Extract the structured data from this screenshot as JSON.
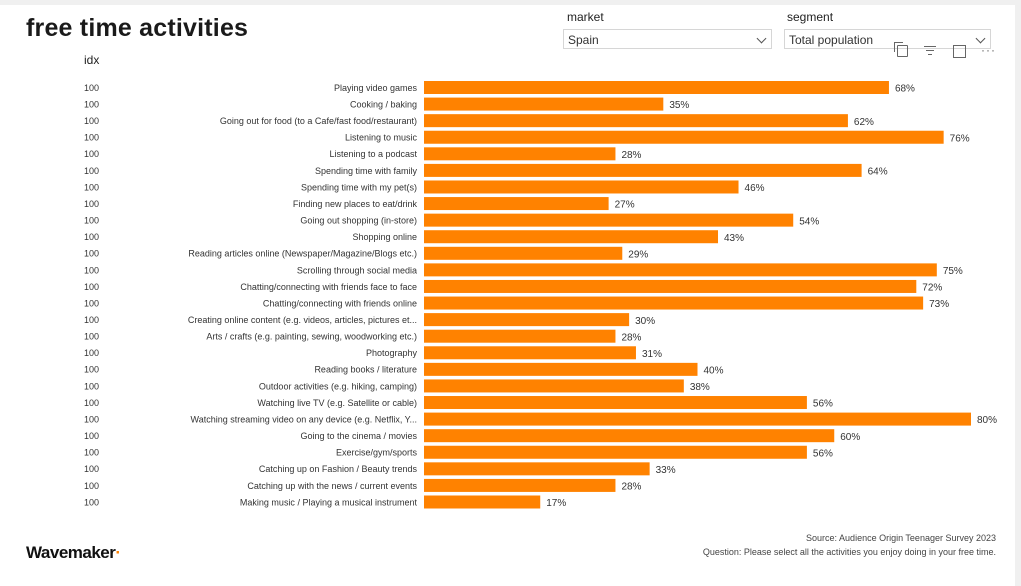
{
  "page": {
    "title": "free time activities",
    "idx_header": "idx",
    "source": "Source: Audience Origin Teenager Survey 2023",
    "question": "Question: Please select all the activities you enjoy doing in your free time.",
    "logo_text": "Wavemaker",
    "logo_dot": "·"
  },
  "filters": {
    "market": {
      "label": "market",
      "value": "Spain"
    },
    "segment": {
      "label": "segment",
      "value": "Total population"
    }
  },
  "toolbar": {
    "icons": [
      "copy-icon",
      "filter-icon",
      "focus-mode-icon",
      "more-options-icon"
    ],
    "more_glyph": "···"
  },
  "colors": {
    "bar": "#ff8200",
    "text": "#333333"
  },
  "chart_data": {
    "type": "bar",
    "orientation": "horizontal",
    "title": "free time activities",
    "xlim": [
      0,
      80
    ],
    "value_suffix": "%",
    "grid": false,
    "categories": [
      "Playing video games",
      "Cooking / baking",
      "Going out for food (to a Cafe/fast food/restaurant)",
      "Listening to music",
      "Listening to a podcast",
      "Spending time with family",
      "Spending time with my pet(s)",
      "Finding new places to eat/drink",
      "Going out shopping (in-store)",
      "Shopping online",
      "Reading articles online (Newspaper/Magazine/Blogs etc.)",
      "Scrolling through social media",
      "Chatting/connecting with friends face to face",
      "Chatting/connecting with friends online",
      "Creating online content (e.g. videos, articles, pictures et...",
      "Arts / crafts (e.g. painting, sewing, woodworking etc.)",
      "Photography",
      "Reading books / literature",
      "Outdoor activities (e.g. hiking, camping)",
      "Watching live TV (e.g. Satellite or cable)",
      "Watching streaming video on any device (e.g. Netflix, Y...",
      "Going to the cinema / movies",
      "Exercise/gym/sports",
      "Catching up on Fashion / Beauty trends",
      "Catching up with the news / current events",
      "Making music / Playing a musical instrument"
    ],
    "values": [
      68,
      35,
      62,
      76,
      28,
      64,
      46,
      27,
      54,
      43,
      29,
      75,
      72,
      73,
      30,
      28,
      31,
      40,
      38,
      56,
      80,
      60,
      56,
      33,
      28,
      17
    ],
    "idx": [
      100,
      100,
      100,
      100,
      100,
      100,
      100,
      100,
      100,
      100,
      100,
      100,
      100,
      100,
      100,
      100,
      100,
      100,
      100,
      100,
      100,
      100,
      100,
      100,
      100,
      100
    ]
  }
}
